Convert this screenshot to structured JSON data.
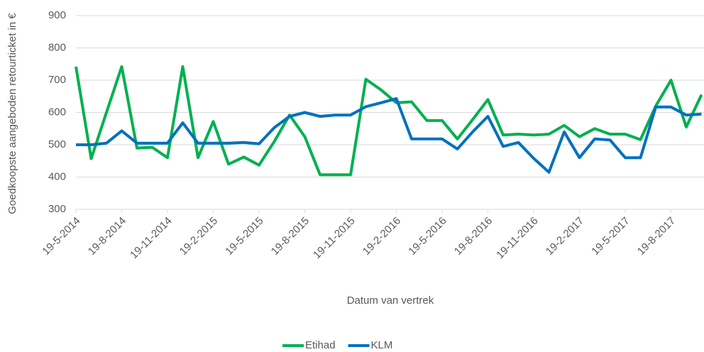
{
  "chart_data": {
    "type": "line",
    "x_label": "Datum van vertrek",
    "y_label": "Goedkoopste aangeboden retourticket in €",
    "categories": [
      "19-5-2014",
      null,
      null,
      "19-8-2014",
      null,
      null,
      "19-11-2014",
      null,
      null,
      "19-2-2015",
      null,
      null,
      "19-5-2015",
      null,
      null,
      "19-8-2015",
      null,
      null,
      "19-11-2015",
      null,
      null,
      "19-2-2016",
      null,
      null,
      "19-5-2016",
      null,
      null,
      "19-8-2016",
      null,
      null,
      "19-11-2016",
      null,
      null,
      "19-2-2017",
      null,
      null,
      "19-5-2017",
      null,
      null,
      "19-8-2017",
      null,
      null
    ],
    "series": [
      {
        "name": "Etihad",
        "color": "#00b050",
        "values": [
          742,
          457,
          600,
          742,
          490,
          492,
          460,
          742,
          460,
          572,
          440,
          462,
          437,
          510,
          592,
          525,
          407,
          407,
          407,
          703,
          670,
          630,
          633,
          575,
          575,
          518,
          578,
          640,
          530,
          533,
          530,
          533,
          560,
          525,
          550,
          533,
          533,
          516,
          620,
          700,
          555,
          655
        ]
      },
      {
        "name": "KLM",
        "color": "#0070c0",
        "values": [
          500,
          500,
          505,
          543,
          505,
          505,
          505,
          568,
          505,
          505,
          505,
          507,
          503,
          553,
          588,
          600,
          588,
          592,
          592,
          618,
          630,
          643,
          518,
          518,
          518,
          487,
          540,
          588,
          495,
          507,
          458,
          415,
          540,
          460,
          518,
          515,
          460,
          460,
          617,
          617,
          592,
          595
        ]
      }
    ],
    "ylim": [
      300,
      900
    ],
    "yticks": [
      300,
      400,
      500,
      600,
      700,
      800,
      900
    ],
    "grid": true,
    "legend": "bottom"
  }
}
